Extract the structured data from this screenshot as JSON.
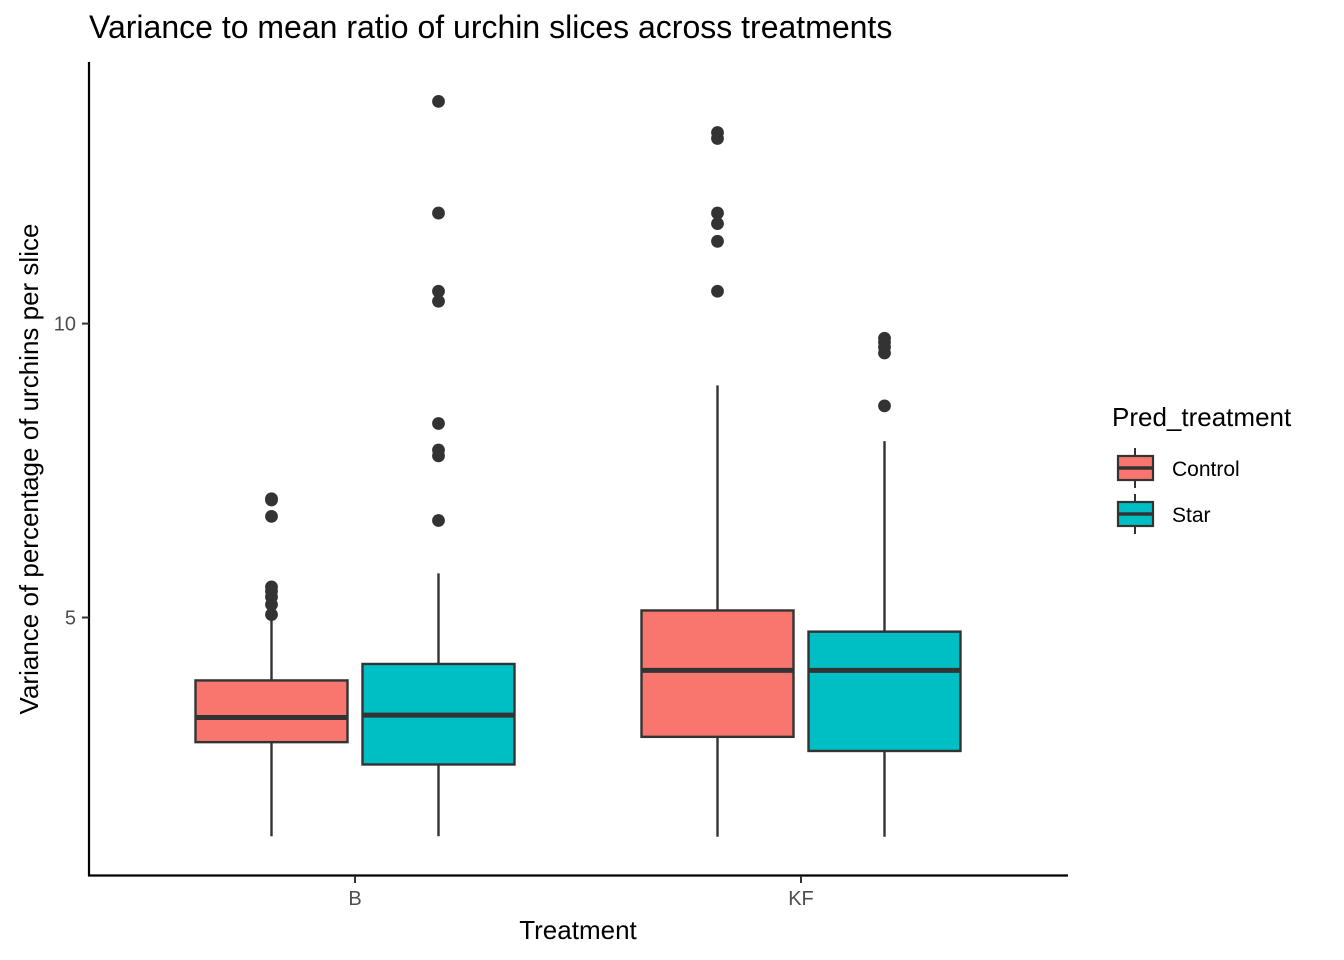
{
  "chart_data": {
    "type": "boxplot",
    "title": "Variance to mean ratio of urchin slices across treatments",
    "xlabel": "Treatment",
    "ylabel": "Variance of percentage of urchins per slice",
    "categories": [
      "B",
      "KF"
    ],
    "y_ticks": [
      5,
      10
    ],
    "ylim": [
      0.62,
      14.45
    ],
    "grid": false,
    "legend": {
      "title": "Pred_treatment",
      "placement": "right",
      "entries": [
        "Control",
        "Star"
      ]
    },
    "series": [
      {
        "name": "Control",
        "color": "#F8766D",
        "boxes": [
          {
            "category": "B",
            "whisker_low": 1.28,
            "q1": 2.88,
            "median": 3.3,
            "q3": 3.93,
            "whisker_high": 5.0,
            "outliers": [
              5.05,
              5.22,
              5.35,
              5.45,
              5.52,
              6.72,
              7.0,
              7.02
            ]
          },
          {
            "category": "KF",
            "whisker_low": 1.27,
            "q1": 2.97,
            "median": 4.1,
            "q3": 5.12,
            "whisker_high": 8.95,
            "outliers": [
              10.55,
              11.4,
              11.7,
              11.88,
              13.15,
              13.25
            ]
          }
        ]
      },
      {
        "name": "Star",
        "color": "#00BFC4",
        "boxes": [
          {
            "category": "B",
            "whisker_low": 1.28,
            "q1": 2.5,
            "median": 3.34,
            "q3": 4.21,
            "whisker_high": 5.75,
            "outliers": [
              6.65,
              7.75,
              7.85,
              8.3,
              10.38,
              10.55,
              11.88,
              13.78
            ]
          },
          {
            "category": "KF",
            "whisker_low": 1.27,
            "q1": 2.73,
            "median": 4.1,
            "q3": 4.76,
            "whisker_high": 8.0,
            "outliers": [
              8.6,
              9.5,
              9.6,
              9.68,
              9.75
            ]
          }
        ]
      }
    ]
  }
}
